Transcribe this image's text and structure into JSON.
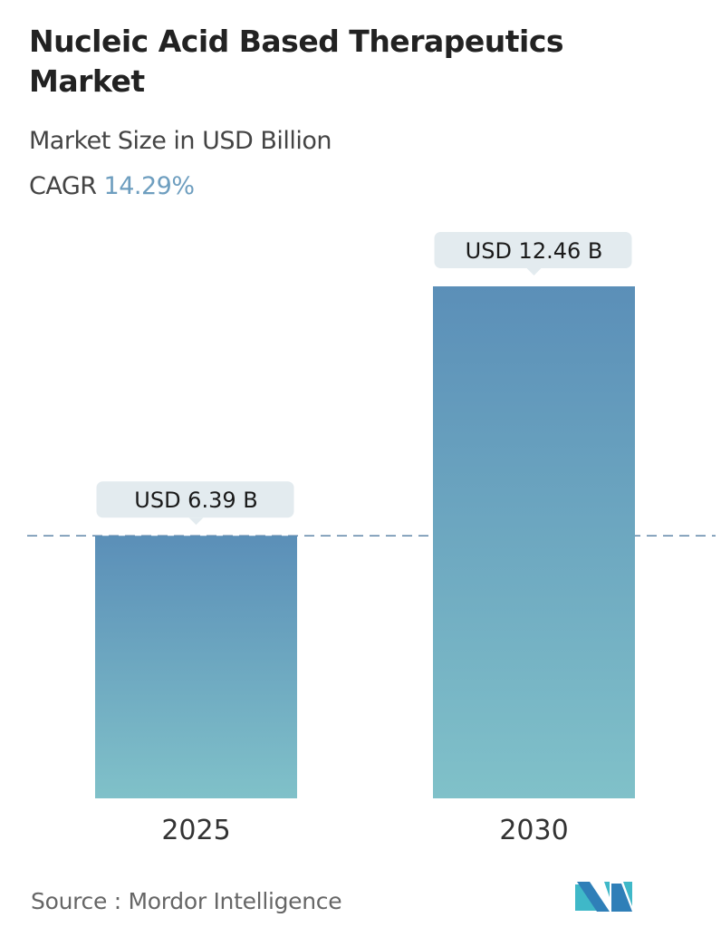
{
  "title": "Nucleic Acid Based Therapeutics Market",
  "subtitle": "Market Size in USD Billion",
  "cagr_label": "CAGR",
  "cagr_value": "14.29%",
  "source": "Source :  Mordor Intelligence",
  "colors": {
    "bar_top": "#5b8fb8",
    "bar_bottom": "#80c1c9",
    "label_bg": "#e3ebef",
    "cagr": "#6e9ebf",
    "dashed_line": "#5f86a8"
  },
  "chart_data": {
    "type": "bar",
    "categories": [
      "2025",
      "2030"
    ],
    "values": [
      6.39,
      12.46
    ],
    "data_labels": [
      "USD 6.39 B",
      "USD 12.46 B"
    ],
    "title": "Nucleic Acid Based Therapeutics Market",
    "xlabel": "",
    "ylabel": "",
    "ylim": [
      0,
      12.46
    ],
    "grid": false,
    "reference_line": 6.39
  }
}
